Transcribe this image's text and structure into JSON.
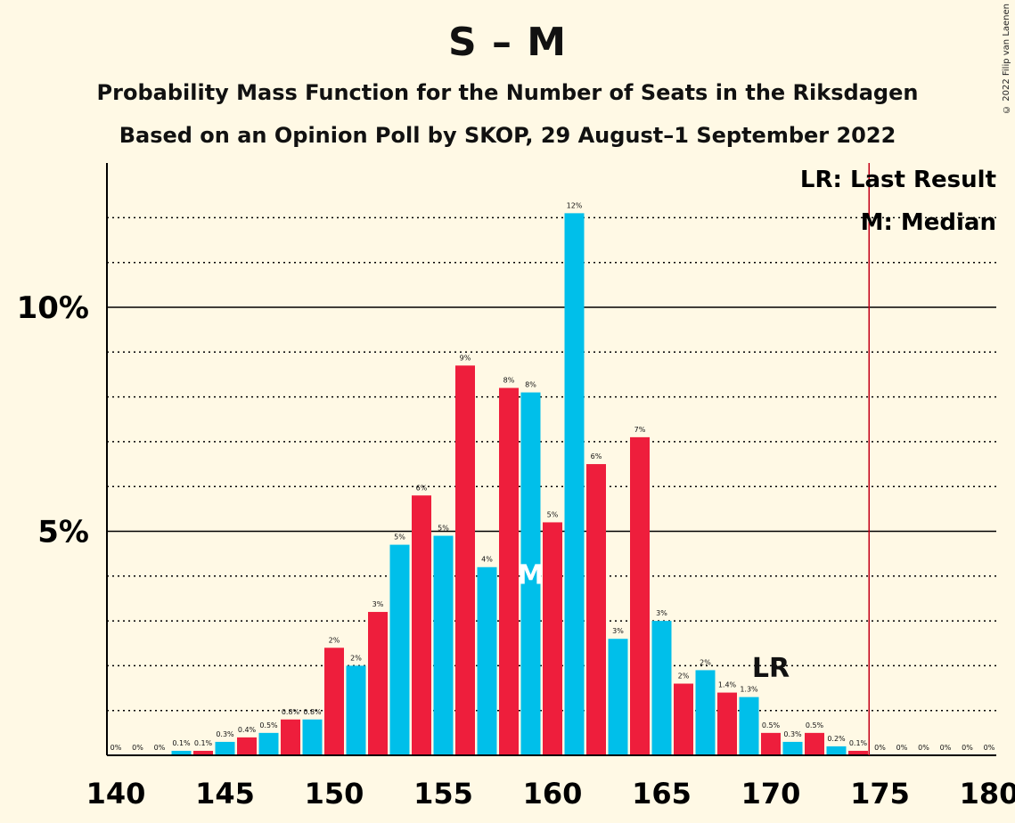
{
  "header": {
    "title": "S – M",
    "subtitle1": "Probability Mass Function for the Number of Seats in the Riksdagen",
    "subtitle2": "Based on an Opinion Poll by SKOP, 29 August–1 September 2022",
    "copyright": "© 2022 Filip van Laenen"
  },
  "legend": {
    "lr": "LR: Last Result",
    "m": "M: Median"
  },
  "colors": {
    "red": "#EE1E3C",
    "blue": "#00BFEA",
    "background": "#FFF9E5",
    "lr_line": "#C40018"
  },
  "chart_data": {
    "type": "bar",
    "x": [
      140,
      141,
      142,
      143,
      144,
      145,
      146,
      147,
      148,
      149,
      150,
      151,
      152,
      153,
      154,
      155,
      156,
      157,
      158,
      159,
      160,
      161,
      162,
      163,
      164,
      165,
      166,
      167,
      168,
      169,
      170,
      171,
      172,
      173,
      174,
      175,
      176,
      177,
      178,
      179,
      180
    ],
    "values": [
      0,
      0,
      0,
      0.1,
      0.1,
      0.3,
      0.4,
      0.5,
      0.8,
      0.8,
      2.4,
      2.0,
      3.2,
      4.7,
      5.8,
      4.9,
      8.7,
      4.2,
      8.2,
      8.1,
      5.2,
      12.1,
      6.5,
      2.6,
      7.1,
      3.0,
      1.6,
      1.9,
      1.4,
      1.3,
      0.5,
      0.3,
      0.5,
      0.2,
      0.1,
      0,
      0,
      0,
      0,
      0,
      0
    ],
    "labels": [
      "0%",
      "0%",
      "0%",
      "0.1%",
      "0.1%",
      "0.3%",
      "0.4%",
      "0.5%",
      "0.8%",
      "0.8%",
      "2%",
      "2%",
      "3%",
      "5%",
      "6%",
      "5%",
      "9%",
      "4%",
      "8%",
      "8%",
      "5%",
      "12%",
      "6%",
      "3%",
      "7%",
      "3%",
      "2%",
      "2%",
      "1.4%",
      "1.3%",
      "0.5%",
      "0.3%",
      "0.5%",
      "0.2%",
      "0.1%",
      "0%",
      "0%",
      "0%",
      "0%",
      "0%",
      "0%"
    ],
    "x_ticks": [
      "140",
      "145",
      "150",
      "155",
      "160",
      "165",
      "170",
      "175",
      "180"
    ],
    "y_ticks": [
      "5%",
      "10%"
    ],
    "ylim": [
      0,
      13.2
    ],
    "median": 159,
    "median_label": "M",
    "last_result": 170,
    "last_result_label": "LR",
    "lr_line_at": 174.5,
    "grid": true
  }
}
